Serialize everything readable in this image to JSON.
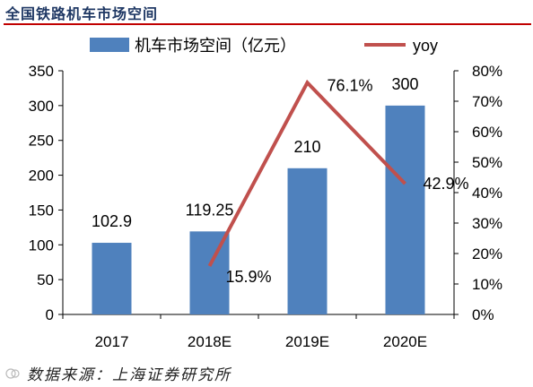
{
  "header": {
    "title": "全国铁路机车市场空间"
  },
  "footer": {
    "source": "数据来源：上海证券研究所"
  },
  "chart_data": {
    "type": "bar",
    "categories": [
      "2017",
      "2018E",
      "2019E",
      "2020E"
    ],
    "series": [
      {
        "name": "机车市场空间（亿元）",
        "type": "bar",
        "axis": "left",
        "values": [
          102.9,
          119.25,
          210,
          300
        ],
        "labels": [
          "102.9",
          "119.25",
          "210",
          "300"
        ]
      },
      {
        "name": "yoy",
        "type": "line",
        "axis": "right",
        "values": [
          null,
          15.9,
          76.1,
          42.9
        ],
        "labels": [
          "",
          "15.9%",
          "76.1%",
          "42.9%"
        ]
      }
    ],
    "y_left": {
      "ylim": [
        0,
        350
      ],
      "ticks": [
        "0",
        "50",
        "100",
        "150",
        "200",
        "250",
        "300",
        "350"
      ]
    },
    "y_right": {
      "ylim": [
        0,
        80
      ],
      "ticks": [
        "0%",
        "10%",
        "20%",
        "30%",
        "40%",
        "50%",
        "60%",
        "70%",
        "80%"
      ]
    },
    "grid": false,
    "legend_position": "top",
    "colors": {
      "bar": "#4f81bd",
      "line": "#c0504d",
      "text": "#000000"
    }
  }
}
